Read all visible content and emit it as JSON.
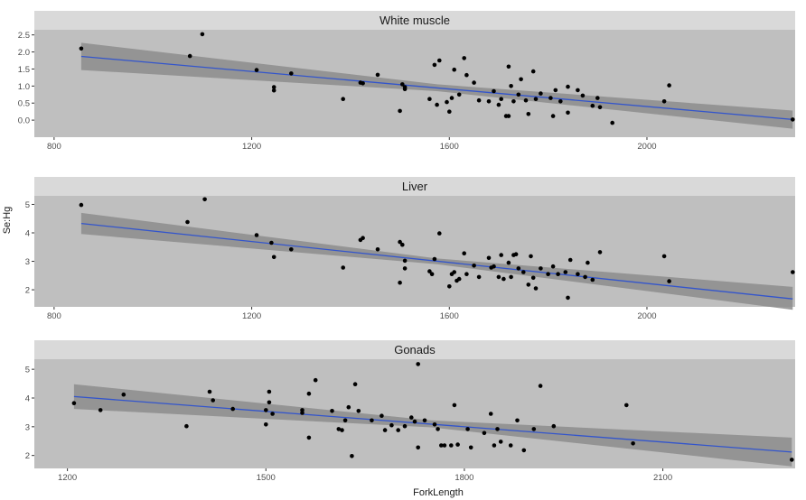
{
  "chart_data": {
    "type": "scatter",
    "xlabel": "ForkLength",
    "ylabel": "Se:Hg",
    "colors": {
      "strip": "#d9d9d9",
      "panel": "#bfbfbf",
      "ribbon": "#8c8c8c",
      "line": "#3355cc",
      "point": "#000000",
      "tick_text": "#4d4d4d"
    },
    "panels": [
      {
        "title": "White muscle",
        "xlim": [
          760,
          2300
        ],
        "ylim": [
          -0.5,
          2.65
        ],
        "xticks": [
          800,
          1200,
          1600,
          2000
        ],
        "xtick_labels": [
          "800",
          "1200",
          "1600",
          "2000"
        ],
        "yticks": [
          0.0,
          0.5,
          1.0,
          1.5,
          2.0,
          2.5
        ],
        "ytick_labels": [
          "0.0",
          "0.5",
          "1.0",
          "1.5",
          "2.0",
          "2.5"
        ],
        "fit": {
          "x": [
            855,
            2295
          ],
          "y": [
            1.87,
            0.02
          ]
        },
        "ribbon_upper": [
          [
            855,
            2.27
          ],
          [
            1575,
            1.05
          ],
          [
            2295,
            0.28
          ]
        ],
        "ribbon_lower": [
          [
            855,
            1.47
          ],
          [
            1575,
            0.85
          ],
          [
            2295,
            -0.25
          ]
        ],
        "points": [
          [
            855,
            2.1
          ],
          [
            1075,
            1.88
          ],
          [
            1100,
            2.52
          ],
          [
            1210,
            1.47
          ],
          [
            1245,
            0.97
          ],
          [
            1245,
            0.87
          ],
          [
            1280,
            1.37
          ],
          [
            1385,
            0.62
          ],
          [
            1420,
            1.1
          ],
          [
            1425,
            1.08
          ],
          [
            1455,
            1.33
          ],
          [
            1500,
            0.27
          ],
          [
            1505,
            1.05
          ],
          [
            1510,
            0.97
          ],
          [
            1510,
            0.91
          ],
          [
            1560,
            0.62
          ],
          [
            1570,
            1.62
          ],
          [
            1575,
            0.45
          ],
          [
            1580,
            1.75
          ],
          [
            1595,
            0.53
          ],
          [
            1600,
            0.25
          ],
          [
            1605,
            0.65
          ],
          [
            1610,
            1.48
          ],
          [
            1620,
            0.75
          ],
          [
            1630,
            1.82
          ],
          [
            1635,
            1.32
          ],
          [
            1650,
            1.1
          ],
          [
            1660,
            0.58
          ],
          [
            1680,
            0.55
          ],
          [
            1690,
            0.85
          ],
          [
            1700,
            0.45
          ],
          [
            1705,
            0.62
          ],
          [
            1715,
            0.12
          ],
          [
            1720,
            0.12
          ],
          [
            1720,
            1.57
          ],
          [
            1725,
            1.0
          ],
          [
            1730,
            0.55
          ],
          [
            1740,
            0.75
          ],
          [
            1745,
            1.2
          ],
          [
            1755,
            0.58
          ],
          [
            1760,
            0.18
          ],
          [
            1770,
            1.43
          ],
          [
            1775,
            0.62
          ],
          [
            1785,
            0.78
          ],
          [
            1805,
            0.65
          ],
          [
            1810,
            0.12
          ],
          [
            1815,
            0.88
          ],
          [
            1825,
            0.55
          ],
          [
            1840,
            0.98
          ],
          [
            1840,
            0.22
          ],
          [
            1860,
            0.88
          ],
          [
            1870,
            0.72
          ],
          [
            1890,
            0.42
          ],
          [
            1900,
            0.65
          ],
          [
            1905,
            0.38
          ],
          [
            1930,
            -0.08
          ],
          [
            2035,
            0.55
          ],
          [
            2045,
            1.02
          ],
          [
            2295,
            0.02
          ]
        ]
      },
      {
        "title": "Liver",
        "xlim": [
          760,
          2300
        ],
        "ylim": [
          1.4,
          5.3
        ],
        "xticks": [
          800,
          1200,
          1600,
          2000
        ],
        "xtick_labels": [
          "800",
          "1200",
          "1600",
          "2000"
        ],
        "yticks": [
          2,
          3,
          4,
          5
        ],
        "ytick_labels": [
          "2",
          "3",
          "4",
          "5"
        ],
        "fit": {
          "x": [
            855,
            2295
          ],
          "y": [
            4.33,
            1.68
          ]
        },
        "ribbon_upper": [
          [
            855,
            4.7
          ],
          [
            1575,
            3.1
          ],
          [
            2295,
            2.1
          ]
        ],
        "ribbon_lower": [
          [
            855,
            3.96
          ],
          [
            1575,
            2.9
          ],
          [
            2295,
            1.3
          ]
        ],
        "points": [
          [
            855,
            4.98
          ],
          [
            1070,
            4.38
          ],
          [
            1105,
            5.18
          ],
          [
            1210,
            3.92
          ],
          [
            1240,
            3.65
          ],
          [
            1245,
            3.15
          ],
          [
            1280,
            3.42
          ],
          [
            1385,
            2.78
          ],
          [
            1420,
            3.75
          ],
          [
            1425,
            3.82
          ],
          [
            1455,
            3.42
          ],
          [
            1500,
            2.25
          ],
          [
            1500,
            3.68
          ],
          [
            1505,
            3.58
          ],
          [
            1510,
            3.02
          ],
          [
            1510,
            2.75
          ],
          [
            1560,
            2.65
          ],
          [
            1565,
            2.55
          ],
          [
            1570,
            3.08
          ],
          [
            1580,
            3.98
          ],
          [
            1600,
            2.12
          ],
          [
            1605,
            2.55
          ],
          [
            1610,
            2.62
          ],
          [
            1615,
            2.32
          ],
          [
            1620,
            2.38
          ],
          [
            1630,
            3.28
          ],
          [
            1635,
            2.55
          ],
          [
            1650,
            2.85
          ],
          [
            1660,
            2.45
          ],
          [
            1680,
            3.12
          ],
          [
            1685,
            2.78
          ],
          [
            1690,
            2.82
          ],
          [
            1700,
            2.45
          ],
          [
            1705,
            3.22
          ],
          [
            1710,
            2.38
          ],
          [
            1720,
            2.95
          ],
          [
            1725,
            2.45
          ],
          [
            1730,
            3.22
          ],
          [
            1735,
            3.25
          ],
          [
            1740,
            2.75
          ],
          [
            1750,
            2.62
          ],
          [
            1760,
            2.18
          ],
          [
            1765,
            3.18
          ],
          [
            1770,
            2.42
          ],
          [
            1775,
            2.05
          ],
          [
            1785,
            2.75
          ],
          [
            1800,
            2.55
          ],
          [
            1810,
            2.82
          ],
          [
            1820,
            2.55
          ],
          [
            1835,
            2.62
          ],
          [
            1840,
            1.72
          ],
          [
            1845,
            3.05
          ],
          [
            1860,
            2.55
          ],
          [
            1875,
            2.45
          ],
          [
            1880,
            2.95
          ],
          [
            1890,
            2.35
          ],
          [
            1905,
            3.32
          ],
          [
            2035,
            3.18
          ],
          [
            2045,
            2.3
          ],
          [
            2295,
            2.62
          ]
        ]
      },
      {
        "title": "Gonads",
        "xlim": [
          1150,
          2300
        ],
        "ylim": [
          1.55,
          5.35
        ],
        "xticks": [
          1200,
          1500,
          1800,
          2100
        ],
        "xtick_labels": [
          "1200",
          "1500",
          "1800",
          "2100"
        ],
        "yticks": [
          2,
          3,
          4,
          5
        ],
        "ytick_labels": [
          "2",
          "3",
          "4",
          "5"
        ],
        "fit": {
          "x": [
            1210,
            2295
          ],
          "y": [
            4.05,
            2.12
          ]
        },
        "ribbon_upper": [
          [
            1210,
            4.48
          ],
          [
            1750,
            3.22
          ],
          [
            2295,
            2.62
          ]
        ],
        "ribbon_lower": [
          [
            1210,
            3.62
          ],
          [
            1750,
            2.98
          ],
          [
            2295,
            1.62
          ]
        ],
        "points": [
          [
            1210,
            3.82
          ],
          [
            1250,
            3.58
          ],
          [
            1285,
            4.12
          ],
          [
            1380,
            3.02
          ],
          [
            1415,
            4.22
          ],
          [
            1420,
            3.92
          ],
          [
            1450,
            3.62
          ],
          [
            1500,
            3.58
          ],
          [
            1500,
            3.08
          ],
          [
            1505,
            4.22
          ],
          [
            1505,
            3.85
          ],
          [
            1510,
            3.45
          ],
          [
            1555,
            3.58
          ],
          [
            1555,
            3.48
          ],
          [
            1565,
            4.15
          ],
          [
            1565,
            2.62
          ],
          [
            1575,
            4.62
          ],
          [
            1600,
            3.55
          ],
          [
            1610,
            2.92
          ],
          [
            1615,
            2.88
          ],
          [
            1620,
            3.22
          ],
          [
            1625,
            3.68
          ],
          [
            1630,
            1.98
          ],
          [
            1635,
            4.48
          ],
          [
            1640,
            3.55
          ],
          [
            1660,
            3.22
          ],
          [
            1675,
            3.38
          ],
          [
            1680,
            2.88
          ],
          [
            1690,
            3.05
          ],
          [
            1700,
            2.88
          ],
          [
            1710,
            3.02
          ],
          [
            1720,
            3.32
          ],
          [
            1725,
            3.18
          ],
          [
            1730,
            2.28
          ],
          [
            1730,
            5.18
          ],
          [
            1740,
            3.22
          ],
          [
            1755,
            3.08
          ],
          [
            1760,
            2.92
          ],
          [
            1765,
            2.35
          ],
          [
            1770,
            2.35
          ],
          [
            1780,
            2.35
          ],
          [
            1785,
            3.75
          ],
          [
            1790,
            2.38
          ],
          [
            1805,
            2.92
          ],
          [
            1810,
            2.28
          ],
          [
            1830,
            2.78
          ],
          [
            1840,
            3.45
          ],
          [
            1845,
            2.35
          ],
          [
            1850,
            2.92
          ],
          [
            1855,
            2.48
          ],
          [
            1870,
            2.35
          ],
          [
            1880,
            3.22
          ],
          [
            1890,
            2.18
          ],
          [
            1905,
            2.92
          ],
          [
            1915,
            4.42
          ],
          [
            1935,
            3.02
          ],
          [
            2045,
            3.75
          ],
          [
            2055,
            2.42
          ],
          [
            2295,
            1.85
          ]
        ]
      }
    ]
  }
}
